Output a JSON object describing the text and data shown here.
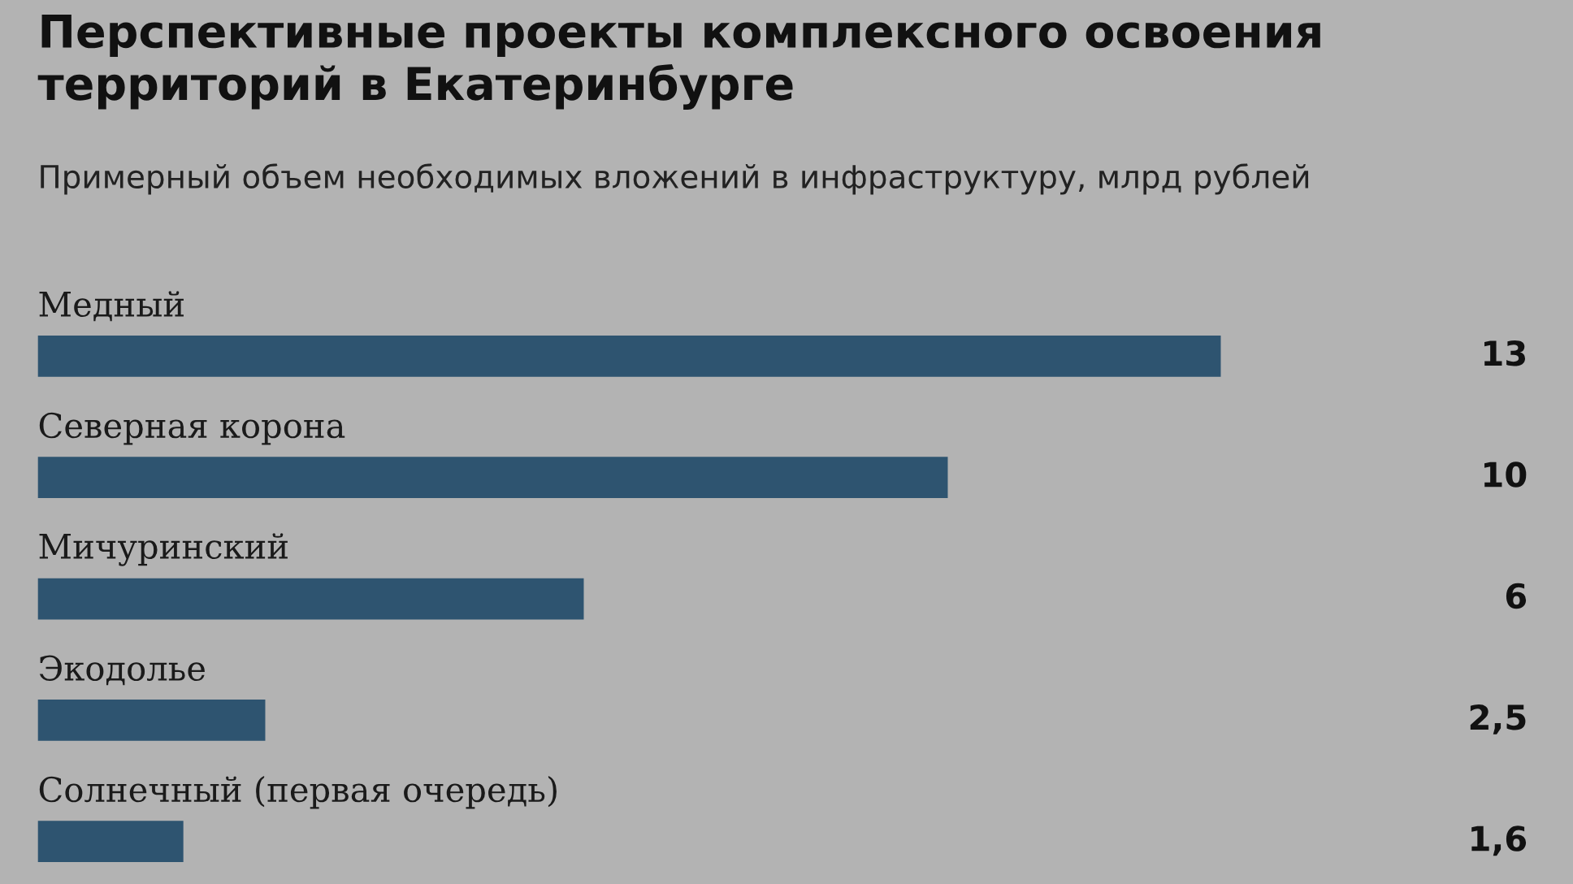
{
  "chart_data": {
    "type": "bar",
    "orientation": "horizontal",
    "title": "Перспективные проекты комплексного освоения территорий в Екатеринбурге",
    "subtitle": "Примерный объем необходимых вложений в инфраструктуру, млрд рублей",
    "categories": [
      "Медный",
      "Северная корона",
      "Мичуринский",
      "Экодолье",
      "Солнечный (первая очередь)"
    ],
    "values": [
      13,
      10,
      6,
      2.5,
      1.6
    ],
    "value_labels": [
      "13",
      "10",
      "6",
      "2,5",
      "1,6"
    ],
    "color": "#2e5470"
  }
}
